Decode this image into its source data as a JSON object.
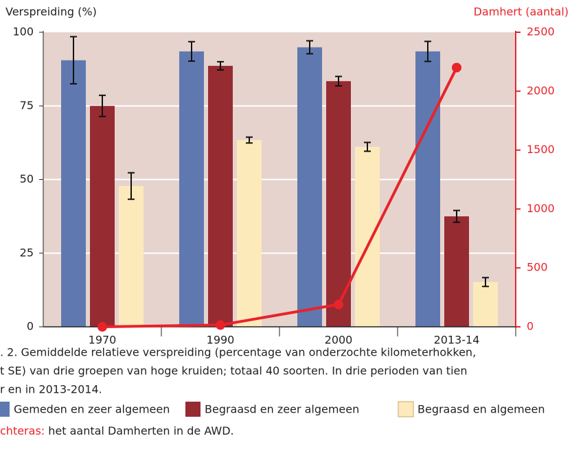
{
  "chart_data": {
    "type": "bar",
    "y_label": "Verspreiding (%)",
    "y2_label": "Damhert (aantal)",
    "categories": [
      "1970",
      "1990",
      "2000",
      "2013-14"
    ],
    "series": [
      {
        "name": "Gemeden en zeer algemeen",
        "color": "#5f79b0",
        "values": [
          90.5,
          93.5,
          94.9,
          93.5
        ],
        "errors": [
          8,
          3.3,
          2.2,
          3.4
        ]
      },
      {
        "name": "Begraasd en zeer algemeen",
        "color": "#962b32",
        "values": [
          75,
          88.6,
          83.4,
          37.5
        ],
        "errors": [
          3.6,
          1.4,
          1.6,
          2
        ]
      },
      {
        "name": "Begraasd en algemeen",
        "color": "#fdeabb",
        "values": [
          47.8,
          63.4,
          61.1,
          15.2
        ],
        "errors": [
          4.5,
          1,
          1.5,
          1.5
        ]
      },
      {
        "type": "line",
        "axis": "y2",
        "color": "#e8232a",
        "values": [
          0,
          15,
          190,
          2200
        ]
      }
    ],
    "ylim": [
      0,
      100
    ],
    "yticks": [
      0,
      25,
      50,
      75,
      100
    ],
    "y2lim": [
      0,
      2500
    ],
    "y2ticks": [
      0,
      500,
      1000,
      1500,
      2000,
      2500
    ],
    "grid": true,
    "background": "#e6d3cd",
    "y2_color": "#e8232a"
  },
  "caption": {
    "lines": [
      ". 2. Gemiddelde relatieve verspreiding (percentage van onderzochte kilometerhokken,",
      "t SE) van drie groepen van hoge kruiden; totaal 40 soorten. In drie perioden van tien",
      "r en in 2013-2014."
    ],
    "note_label": "chteras:",
    "note_text": " het aantal Damherten in de AWD."
  }
}
